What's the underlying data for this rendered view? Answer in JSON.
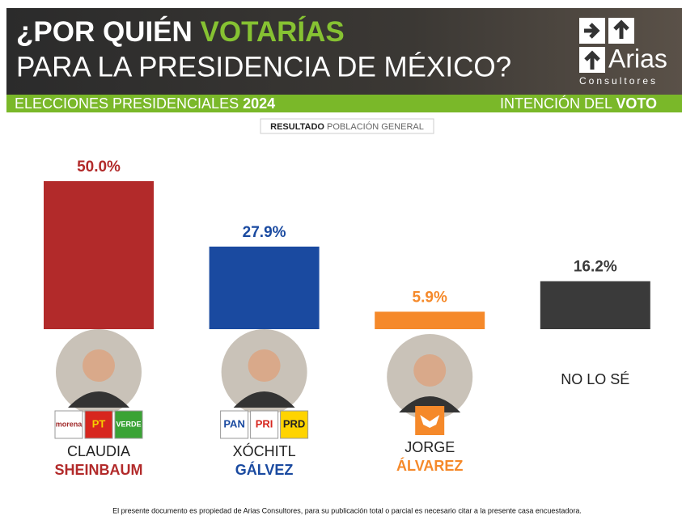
{
  "header": {
    "title_a": "¿POR QUIÉN ",
    "title_b": "VOTARÍAS",
    "title_line2": "PARA LA PRESIDENCIA DE MÉXICO?",
    "brand": "Arias",
    "brand_sub": "Consultores",
    "left_a": "ELECCIONES PRESIDENCIALES ",
    "left_b": "2024",
    "right_a": "INTENCIÓN DEL ",
    "right_b": "VOTO"
  },
  "subtitle_a": "RESULTADO",
  "subtitle_b": " POBLACIÓN GENERAL",
  "chart_data": {
    "type": "bar",
    "categories": [
      {
        "first": "CLAUDIA",
        "last": "SHEINBAUM",
        "parties": [
          "morena",
          "PT",
          "VERDE"
        ]
      },
      {
        "first": "XÓCHITL",
        "last": "GÁLVEZ",
        "parties": [
          "PAN",
          "PRI",
          "PRD"
        ]
      },
      {
        "first": "JORGE",
        "last": "ÁLVAREZ"
      },
      {
        "first": "NO LO SÉ"
      }
    ],
    "values": [
      50.0,
      27.9,
      5.9,
      16.2
    ],
    "value_labels": [
      "50.0%",
      "27.9%",
      "5.9%",
      "16.2%"
    ],
    "colors": [
      "#b22a2a",
      "#1a4aa0",
      "#f5892a",
      "#3a3a3a"
    ]
  },
  "footer": "El presente documento es propiedad de Arias Consultores, para su publicación total o parcial es necesario citar a la presente casa encuestadora."
}
